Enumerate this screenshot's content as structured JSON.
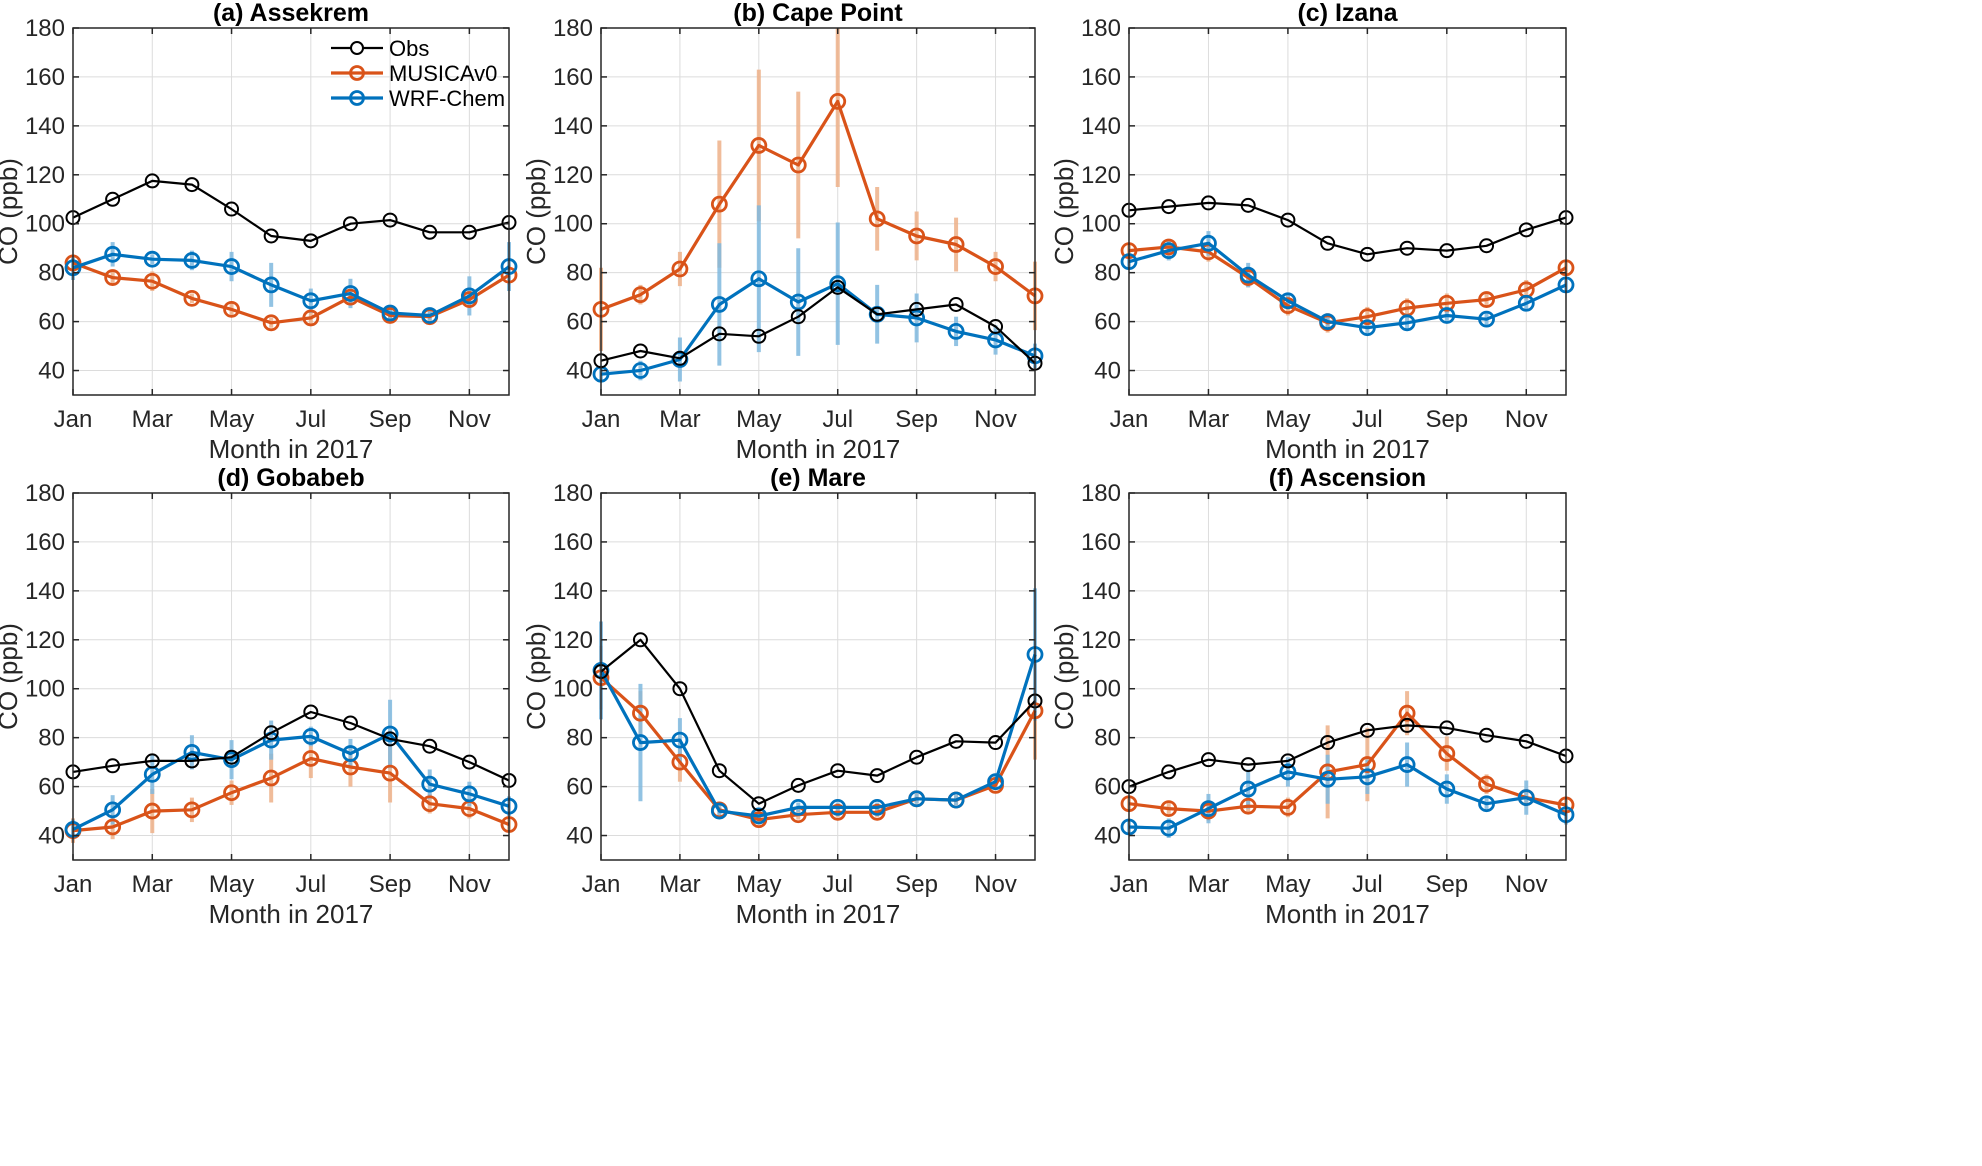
{
  "chart_data": {
    "type": "line",
    "shared": {
      "x_values": [
        1,
        2,
        3,
        4,
        5,
        6,
        7,
        8,
        9,
        10,
        11,
        12
      ],
      "xticks": [
        1,
        3,
        5,
        7,
        9,
        11
      ],
      "xtick_labels": [
        "Jan",
        "Mar",
        "May",
        "Jul",
        "Sep",
        "Nov"
      ],
      "xlim": [
        1,
        12
      ],
      "ylim": [
        30,
        180
      ],
      "yticks": [
        40,
        60,
        80,
        100,
        120,
        140,
        160,
        180
      ],
      "xlabel": "Month in 2017",
      "ylabel": "CO (ppb)",
      "grid": true,
      "series_styles": [
        {
          "name": "Obs",
          "color": "#000000"
        },
        {
          "name": "MUSICAv0",
          "color": "#D95319",
          "errorbar_color": "#EDB088"
        },
        {
          "name": "WRF-Chem",
          "color": "#0072BD",
          "errorbar_color": "#7FB8DE"
        }
      ],
      "legend": {
        "entries": [
          "Obs",
          "MUSICAv0",
          "WRF-Chem"
        ],
        "placement": "top-right",
        "panel": 0
      }
    },
    "panels": [
      {
        "title": "(a) Assekrem",
        "series": [
          {
            "name": "Obs",
            "values": [
              102.5,
              110,
              117.5,
              116,
              106,
              95,
              93,
              100,
              101.5,
              96.5,
              96.5,
              100.5
            ]
          },
          {
            "name": "MUSICAv0",
            "values": [
              84,
              78,
              76.5,
              69.5,
              65,
              59.5,
              61.5,
              70,
              62.5,
              62,
              69,
              79
            ],
            "err": [
              2,
              3,
              4,
              2,
              3,
              2,
              3,
              3,
              3,
              2,
              3,
              4
            ]
          },
          {
            "name": "WRF-Chem",
            "values": [
              82,
              87.5,
              85.5,
              85,
              82.5,
              75,
              68.5,
              71.5,
              63.5,
              62.5,
              70.5,
              82.5
            ],
            "err": [
              5,
              5,
              2,
              4,
              6,
              9,
              5,
              6,
              3,
              2,
              8,
              10
            ]
          }
        ]
      },
      {
        "title": "(b) Cape Point",
        "series": [
          {
            "name": "Obs",
            "values": [
              44,
              48,
              45,
              55,
              54,
              62,
              74,
              63,
              65,
              67,
              58,
              43
            ]
          },
          {
            "name": "MUSICAv0",
            "values": [
              65,
              71,
              81.5,
              108,
              132,
              124,
              150,
              102,
              95,
              91.5,
              82.5,
              70.5
            ],
            "err": [
              17,
              4,
              7,
              26,
              31,
              30,
              35,
              13,
              10,
              11,
              6,
              14
            ]
          },
          {
            "name": "WRF-Chem",
            "values": [
              38.5,
              40,
              44.5,
              67,
              77.5,
              68,
              75.5,
              63,
              61.5,
              56,
              52.5,
              46
            ],
            "err": [
              3,
              4,
              9,
              25,
              30,
              22,
              25,
              12,
              10,
              6,
              6,
              5
            ]
          }
        ]
      },
      {
        "title": "(c) Izana",
        "series": [
          {
            "name": "Obs",
            "values": [
              105.5,
              107,
              108.5,
              107.5,
              101.5,
              92,
              87.5,
              90,
              89,
              91,
              97.5,
              102.5
            ]
          },
          {
            "name": "MUSICAv0",
            "values": [
              89,
              90.5,
              88.5,
              78,
              66.5,
              59.5,
              62,
              65.5,
              67.5,
              69,
              73,
              82
            ],
            "err": [
              3,
              3,
              4,
              4,
              4,
              4,
              4,
              4,
              4,
              3,
              4,
              3
            ]
          },
          {
            "name": "WRF-Chem",
            "values": [
              84.5,
              89,
              92,
              79,
              68.5,
              60,
              57.5,
              59.5,
              62.5,
              61,
              67.5,
              75
            ],
            "err": [
              3,
              4,
              5,
              5,
              3,
              3,
              3,
              3,
              3,
              3,
              3,
              3
            ]
          }
        ]
      },
      {
        "title": "(d) Gobabeb",
        "series": [
          {
            "name": "Obs",
            "values": [
              66,
              68.5,
              70.5,
              70.5,
              72,
              82,
              90.5,
              86,
              79.5,
              76.5,
              70,
              62.5
            ]
          },
          {
            "name": "MUSICAv0",
            "values": [
              42,
              43.5,
              50,
              50.5,
              57.5,
              63.5,
              71.5,
              68,
              65.5,
              53,
              51,
              44.5
            ],
            "err": [
              5,
              5,
              9,
              5,
              5,
              10,
              8,
              8,
              12,
              4,
              4,
              3
            ]
          },
          {
            "name": "WRF-Chem",
            "values": [
              42.5,
              50.5,
              65,
              74,
              71,
              79,
              80.5,
              73.5,
              81.5,
              61,
              57,
              52
            ],
            "err": [
              4,
              6,
              8,
              7,
              8,
              8,
              4,
              6,
              14,
              6,
              5,
              4
            ]
          }
        ]
      },
      {
        "title": "(e) Mare",
        "series": [
          {
            "name": "Obs",
            "values": [
              107,
              120,
              100,
              66.5,
              53,
              60.5,
              66.5,
              64.5,
              72,
              78.5,
              78,
              95
            ]
          },
          {
            "name": "MUSICAv0",
            "values": [
              104.5,
              90,
              70,
              50.5,
              46.5,
              48.5,
              49.5,
              49.5,
              55,
              54.5,
              60.5,
              91
            ],
            "err": [
              13,
              9,
              8,
              2,
              2,
              2,
              2,
              2,
              2,
              2,
              2,
              20
            ]
          },
          {
            "name": "WRF-Chem",
            "values": [
              107.5,
              78,
              79,
              50,
              48,
              51.5,
              51.5,
              51.5,
              55,
              54.5,
              62,
              114
            ],
            "err": [
              20,
              24,
              9,
              2,
              2,
              2,
              2,
              2,
              2,
              2,
              3,
              27
            ]
          }
        ]
      },
      {
        "title": "(f) Ascension",
        "series": [
          {
            "name": "Obs",
            "values": [
              60,
              66,
              71,
              69,
              70.5,
              78,
              83,
              85,
              84,
              81,
              78.5,
              72.5
            ]
          },
          {
            "name": "MUSICAv0",
            "values": [
              53,
              51,
              50,
              52,
              51.5,
              66,
              69,
              90,
              73.5,
              61,
              55.5,
              52.5
            ],
            "err": [
              3,
              3,
              4,
              3,
              4,
              19,
              15,
              9,
              7,
              4,
              3,
              3
            ]
          },
          {
            "name": "WRF-Chem",
            "values": [
              43.5,
              43,
              51,
              59,
              66,
              63,
              64,
              69,
              59,
              53,
              55.5,
              48.5
            ],
            "err": [
              3,
              4,
              6,
              8,
              6,
              10,
              7,
              9,
              6,
              3,
              7,
              4
            ]
          }
        ]
      }
    ]
  }
}
